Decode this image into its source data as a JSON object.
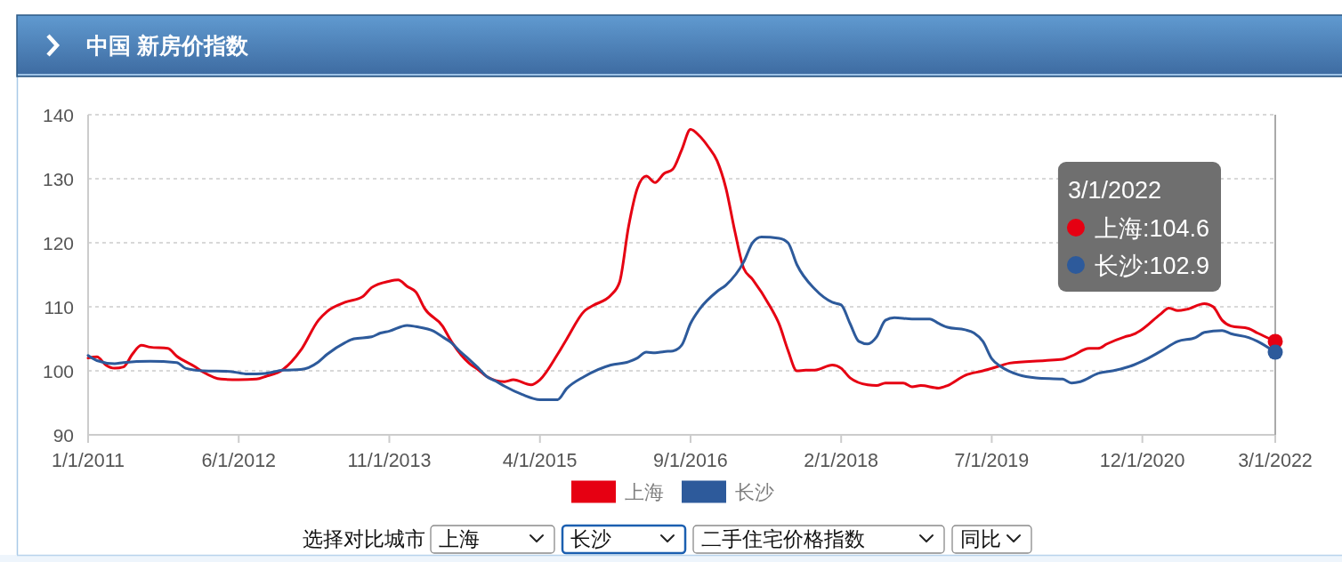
{
  "chart_data": {
    "type": "line",
    "title": "中国 新房价指数",
    "xlim": [
      "2011-01",
      "2022-03"
    ],
    "xticks": [
      {
        "value": "2011-01",
        "label": "1/1/2011"
      },
      {
        "value": "2012-06",
        "label": "6/1/2012"
      },
      {
        "value": "2013-11",
        "label": "11/1/2013"
      },
      {
        "value": "2015-04",
        "label": "4/1/2015"
      },
      {
        "value": "2016-09",
        "label": "9/1/2016"
      },
      {
        "value": "2018-02",
        "label": "2/1/2018"
      },
      {
        "value": "2019-07",
        "label": "7/1/2019"
      },
      {
        "value": "2020-12",
        "label": "12/1/2020"
      },
      {
        "value": "2022-03",
        "label": "3/1/2022"
      }
    ],
    "ylim": [
      90,
      140
    ],
    "yticks": [
      90,
      100,
      110,
      120,
      130,
      140
    ],
    "grid": "y",
    "legend": "bottom",
    "marker": "none",
    "line_style": "solid",
    "ref_lines": [
      {
        "axis": "x",
        "value": "2022-03",
        "color": "#aaaaaa"
      }
    ],
    "series": [
      {
        "name": "上海",
        "color": "#e60012",
        "x": [
          "2011-01",
          "2011-02",
          "2011-03",
          "2011-04",
          "2011-05",
          "2011-06",
          "2011-07",
          "2011-08",
          "2011-10",
          "2011-11",
          "2012-01",
          "2012-02",
          "2012-04",
          "2012-06",
          "2012-08",
          "2012-09",
          "2012-11",
          "2013-01",
          "2013-03",
          "2013-04",
          "2013-06",
          "2013-08",
          "2013-09",
          "2013-11",
          "2013-12",
          "2014-01",
          "2014-02",
          "2014-03",
          "2014-05",
          "2014-06",
          "2014-08",
          "2014-09",
          "2014-10",
          "2014-12",
          "2015-01",
          "2015-03",
          "2015-04",
          "2015-06",
          "2015-07",
          "2015-09",
          "2015-10",
          "2015-12",
          "2016-01",
          "2016-02",
          "2016-03",
          "2016-04",
          "2016-05",
          "2016-06",
          "2016-07",
          "2016-08",
          "2016-09",
          "2016-10",
          "2016-11",
          "2016-12",
          "2017-01",
          "2017-02",
          "2017-03",
          "2017-04",
          "2017-06",
          "2017-07",
          "2017-08",
          "2017-09",
          "2017-10",
          "2017-11",
          "2018-01",
          "2018-02",
          "2018-03",
          "2018-05",
          "2018-06",
          "2018-07",
          "2018-09",
          "2018-10",
          "2018-11",
          "2019-01",
          "2019-02",
          "2019-04",
          "2019-06",
          "2019-08",
          "2019-09",
          "2020-01",
          "2020-03",
          "2020-04",
          "2020-06",
          "2020-07",
          "2020-08",
          "2020-10",
          "2020-11",
          "2020-12",
          "2021-02",
          "2021-03",
          "2021-04",
          "2021-05",
          "2021-07",
          "2021-08",
          "2021-09",
          "2021-10",
          "2021-12",
          "2022-01",
          "2022-03"
        ],
        "values": [
          102.0,
          102.2,
          100.9,
          100.4,
          100.6,
          102.6,
          104.0,
          103.7,
          103.5,
          102.3,
          100.7,
          99.8,
          98.7,
          98.6,
          98.7,
          99.1,
          100.2,
          103.2,
          107.9,
          109.3,
          110.7,
          111.6,
          113.0,
          114.0,
          114.2,
          113.2,
          112.3,
          109.7,
          107.0,
          104.6,
          101.2,
          100.2,
          99.1,
          98.3,
          98.6,
          97.8,
          98.6,
          102.6,
          104.9,
          109.3,
          110.2,
          111.8,
          113.9,
          122.5,
          128.5,
          130.4,
          129.4,
          130.8,
          131.5,
          134.5,
          137.7,
          136.7,
          135.0,
          132.8,
          128.5,
          121.8,
          116.0,
          114.3,
          110.0,
          107.3,
          103.2,
          100.0,
          100.1,
          100.1,
          100.9,
          100.4,
          98.9,
          97.8,
          97.7,
          98.1,
          98.1,
          97.5,
          97.7,
          97.3,
          97.7,
          99.3,
          100.0,
          100.8,
          101.2,
          101.6,
          101.8,
          102.3,
          103.5,
          103.5,
          104.2,
          105.3,
          105.7,
          106.5,
          108.8,
          109.8,
          109.4,
          109.6,
          110.5,
          110.0,
          107.9,
          107.0,
          106.6,
          105.9,
          104.6
        ]
      },
      {
        "name": "长沙",
        "color": "#2d5a9b",
        "x": [
          "2011-01",
          "2011-02",
          "2011-04",
          "2011-05",
          "2011-08",
          "2011-11",
          "2011-12",
          "2012-02",
          "2012-05",
          "2012-07",
          "2012-09",
          "2012-11",
          "2013-01",
          "2013-03",
          "2013-04",
          "2013-06",
          "2013-07",
          "2013-09",
          "2013-10",
          "2013-11",
          "2014-01",
          "2014-02",
          "2014-04",
          "2014-05",
          "2014-06",
          "2014-07",
          "2014-08",
          "2014-09",
          "2014-10",
          "2014-11",
          "2014-12",
          "2015-02",
          "2015-04",
          "2015-06",
          "2015-07",
          "2015-09",
          "2015-12",
          "2016-02",
          "2016-03",
          "2016-04",
          "2016-05",
          "2016-06",
          "2016-07",
          "2016-08",
          "2016-09",
          "2016-10",
          "2016-12",
          "2017-01",
          "2017-03",
          "2017-04",
          "2017-05",
          "2017-07",
          "2017-08",
          "2017-09",
          "2017-11",
          "2018-01",
          "2018-02",
          "2018-03",
          "2018-04",
          "2018-05",
          "2018-06",
          "2018-07",
          "2018-08",
          "2018-10",
          "2018-12",
          "2019-01",
          "2019-02",
          "2019-04",
          "2019-05",
          "2019-06",
          "2019-07",
          "2019-08",
          "2019-10",
          "2019-12",
          "2020-03",
          "2020-04",
          "2020-05",
          "2020-07",
          "2020-09",
          "2020-11",
          "2020-12",
          "2021-02",
          "2021-04",
          "2021-06",
          "2021-07",
          "2021-09",
          "2021-10",
          "2021-12",
          "2022-01",
          "2022-03"
        ],
        "values": [
          102.4,
          101.6,
          101.1,
          101.3,
          101.5,
          101.3,
          100.4,
          100.0,
          99.9,
          99.5,
          99.6,
          100.1,
          100.2,
          101.4,
          102.6,
          104.4,
          105.0,
          105.3,
          105.9,
          106.2,
          107.1,
          106.9,
          106.2,
          105.3,
          104.4,
          103.0,
          101.8,
          100.5,
          99.1,
          98.4,
          97.6,
          96.3,
          95.5,
          95.5,
          97.2,
          99.1,
          100.9,
          101.4,
          102.0,
          102.9,
          102.8,
          103.0,
          103.1,
          104.0,
          107.4,
          109.6,
          112.4,
          113.4,
          117.0,
          120.0,
          120.9,
          120.7,
          120.0,
          116.6,
          112.8,
          110.7,
          110.3,
          107.4,
          104.6,
          104.2,
          105.3,
          107.9,
          108.3,
          108.1,
          108.1,
          107.4,
          106.8,
          106.4,
          105.9,
          104.6,
          101.9,
          100.7,
          99.4,
          98.9,
          98.7,
          98.1,
          98.3,
          99.6,
          100.1,
          100.9,
          101.5,
          103.0,
          104.6,
          105.2,
          106.0,
          106.3,
          105.8,
          105.2,
          104.6,
          102.9
        ]
      }
    ],
    "annotations": [
      "3/1/2022",
      "上海:104.6",
      "长沙:102.9",
      "选择对比城市",
      "上海",
      "长沙",
      "二手住宅价格指数",
      "同比"
    ]
  }
}
